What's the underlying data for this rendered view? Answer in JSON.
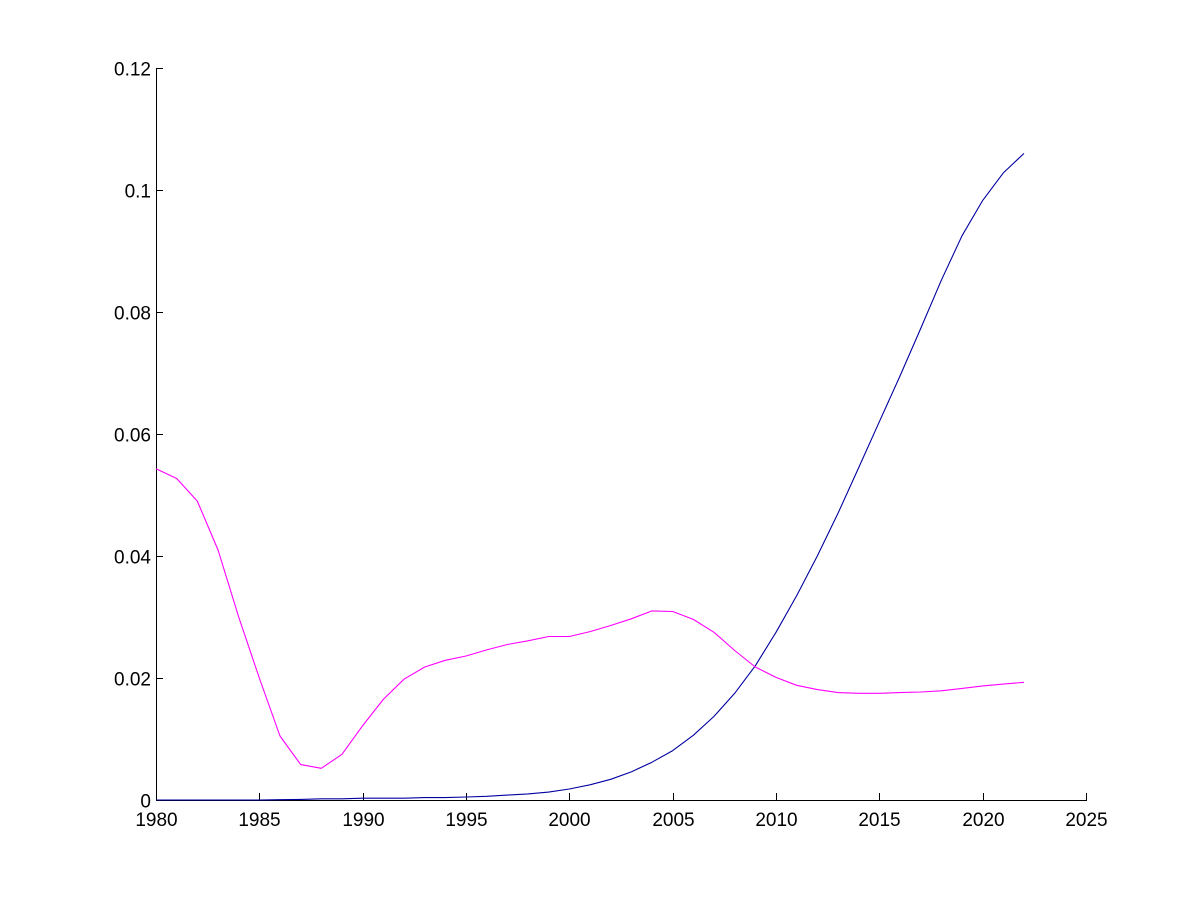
{
  "chart_data": {
    "type": "line",
    "title": "",
    "xlabel": "",
    "ylabel": "",
    "xlim": [
      1980,
      2025
    ],
    "ylim": [
      0,
      0.12
    ],
    "xticks": [
      1980,
      1985,
      1990,
      1995,
      2000,
      2005,
      2010,
      2015,
      2020,
      2025
    ],
    "xtick_labels": [
      "1980",
      "1985",
      "1990",
      "1995",
      "2000",
      "2005",
      "2010",
      "2015",
      "2020",
      "2025"
    ],
    "yticks": [
      0,
      0.02,
      0.04,
      0.06,
      0.08,
      0.1,
      0.12
    ],
    "ytick_labels": [
      "0",
      "0.02",
      "0.04",
      "0.06",
      "0.08",
      "0.1",
      "0.12"
    ],
    "grid": false,
    "legend": "none",
    "x": [
      1980,
      1981,
      1982,
      1983,
      1984,
      1985,
      1986,
      1987,
      1988,
      1989,
      1990,
      1991,
      1992,
      1993,
      1994,
      1995,
      1996,
      1997,
      1998,
      1999,
      2000,
      2001,
      2002,
      2003,
      2004,
      2005,
      2006,
      2007,
      2008,
      2009,
      2010,
      2011,
      2012,
      2013,
      2014,
      2015,
      2016,
      2017,
      2018,
      2019,
      2020,
      2021,
      2022
    ],
    "series": [
      {
        "color": "#0000a0",
        "values": [
          0,
          0,
          0,
          0,
          0,
          0,
          5e-05,
          0.0001,
          0.0002,
          0.0002,
          0.0003,
          0.0003,
          0.0003,
          0.0004,
          0.0004,
          0.0005,
          0.0006,
          0.0008,
          0.001,
          0.0013,
          0.0018,
          0.0025,
          0.0034,
          0.0046,
          0.0062,
          0.0081,
          0.0106,
          0.0137,
          0.0175,
          0.022,
          0.0275,
          0.0335,
          0.04,
          0.047,
          0.0545,
          0.062,
          0.0695,
          0.0773,
          0.0852,
          0.0925,
          0.0983,
          0.1028,
          0.106
        ]
      },
      {
        "color": "#ff00ff",
        "values": [
          0.0543,
          0.0527,
          0.049,
          0.041,
          0.03,
          0.02,
          0.0105,
          0.0058,
          0.0052,
          0.0075,
          0.0122,
          0.0165,
          0.0198,
          0.0218,
          0.0229,
          0.0236,
          0.0246,
          0.0255,
          0.0261,
          0.0268,
          0.0268,
          0.0276,
          0.0286,
          0.0297,
          0.031,
          0.0309,
          0.0296,
          0.0275,
          0.0245,
          0.0218,
          0.0201,
          0.0188,
          0.0181,
          0.0176,
          0.0175,
          0.0175,
          0.0176,
          0.0177,
          0.0179,
          0.0183,
          0.0187,
          0.019,
          0.0193
        ]
      }
    ]
  }
}
